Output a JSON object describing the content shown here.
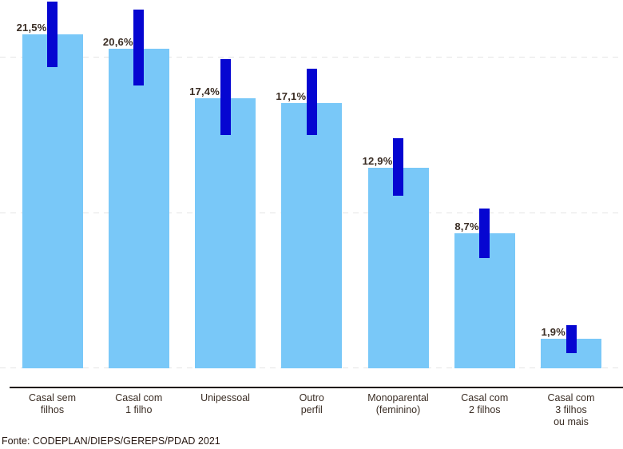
{
  "chart_data": {
    "type": "bar",
    "title": "",
    "categories": [
      "Casal sem\nfilhos",
      "Casal com\n1 filho",
      "Unipessoal",
      "Outro\nperfil",
      "Monoparental\n(feminino)",
      "Casal com\n2 filhos",
      "Casal com\n3 filhos\nou mais"
    ],
    "values": [
      21.5,
      20.6,
      17.4,
      17.1,
      12.9,
      8.7,
      1.9
    ],
    "value_labels": [
      "21,5%",
      "20,6%",
      "17,4%",
      "17,1%",
      "12,9%",
      "8,7%",
      "1,9%"
    ],
    "error_bars": {
      "low": [
        19.4,
        18.2,
        15.0,
        15.0,
        11.1,
        7.1,
        1.0
      ],
      "high": [
        23.6,
        23.1,
        19.9,
        19.3,
        14.8,
        10.3,
        2.8
      ]
    },
    "xlabel": "",
    "ylabel": "",
    "ylim": [
      0,
      24
    ],
    "gridlines": [
      0,
      10,
      20
    ],
    "grid": "dashed-horizontal",
    "legend": "none",
    "bar_color": "#79c8f8",
    "error_bar_color": "#0606d1"
  },
  "footer": {
    "source": "Fonte: CODEPLAN/DIEPS/GEREPS/PDAD 2021"
  },
  "colors": {
    "background": "#ffffff",
    "value_label_text": "#3a2d24",
    "category_label_text": "#3a2d24",
    "axis_line": "#1f0f05",
    "gridline": "#e4e4e4",
    "source_text": "#271812"
  }
}
